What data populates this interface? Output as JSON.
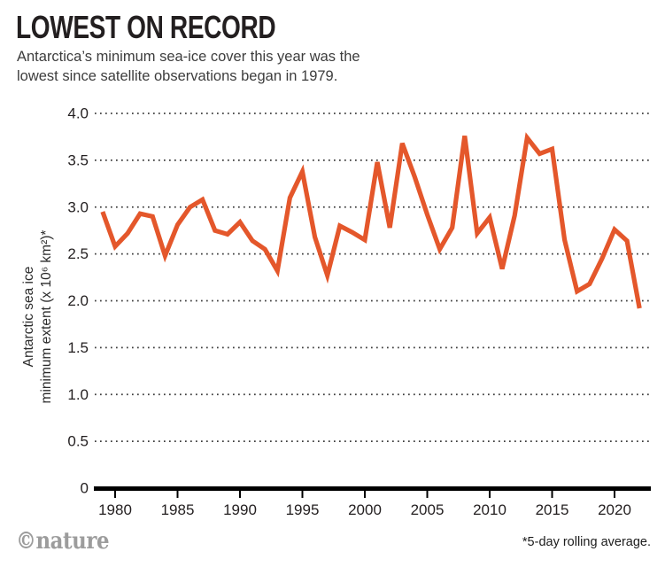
{
  "header": {
    "title": "LOWEST ON RECORD",
    "subtitle_line1": "Antarctica’s minimum sea-ice cover this year was the",
    "subtitle_line2": "lowest since satellite observations began in 1979."
  },
  "footer": {
    "credit": "©nature",
    "note": "*5-day rolling average."
  },
  "chart_data": {
    "type": "line",
    "title": "LOWEST ON RECORD",
    "subtitle": "Antarctica’s minimum sea-ice cover this year was the lowest since satellite observations began in 1979.",
    "series_name": "Antarctic sea ice minimum extent",
    "ylabel_line1": "Antarctic sea ice",
    "ylabel_line2": "minimum extent (x 10⁶ km²)*",
    "xlabel": "",
    "x": [
      1979,
      1980,
      1981,
      1982,
      1983,
      1984,
      1985,
      1986,
      1987,
      1988,
      1989,
      1990,
      1991,
      1992,
      1993,
      1994,
      1995,
      1996,
      1997,
      1998,
      1999,
      2000,
      2001,
      2002,
      2003,
      2004,
      2005,
      2006,
      2007,
      2008,
      2009,
      2010,
      2011,
      2012,
      2013,
      2014,
      2015,
      2016,
      2017,
      2018,
      2019,
      2020,
      2021,
      2022
    ],
    "y": [
      2.95,
      2.58,
      2.72,
      2.93,
      2.9,
      2.48,
      2.81,
      3.0,
      3.08,
      2.75,
      2.71,
      2.84,
      2.64,
      2.55,
      2.32,
      3.1,
      3.38,
      2.68,
      2.27,
      2.8,
      2.73,
      2.65,
      3.48,
      2.78,
      3.68,
      3.32,
      2.92,
      2.55,
      2.78,
      3.76,
      2.72,
      2.89,
      2.34,
      2.91,
      3.74,
      3.57,
      3.62,
      2.65,
      2.1,
      2.18,
      2.45,
      2.76,
      2.64,
      1.92
    ],
    "xlim": [
      1978.3,
      2022.9
    ],
    "ylim": [
      0,
      4.0
    ],
    "x_ticks": [
      1980,
      1985,
      1990,
      1995,
      2000,
      2005,
      2010,
      2015,
      2020
    ],
    "y_ticks": [
      0,
      0.5,
      1.0,
      1.5,
      2.0,
      2.5,
      3.0,
      3.5,
      4.0
    ],
    "y_tick_labels": [
      "0",
      "0.5",
      "1.0",
      "1.5",
      "2.0",
      "2.5",
      "3.0",
      "3.5",
      "4.0"
    ],
    "grid": "horizontal dotted, no vertical grid, legend none",
    "line_color": "#E4572B",
    "axis_color": "#000000",
    "text_color": "#231f20",
    "note": "*5-day rolling average."
  }
}
